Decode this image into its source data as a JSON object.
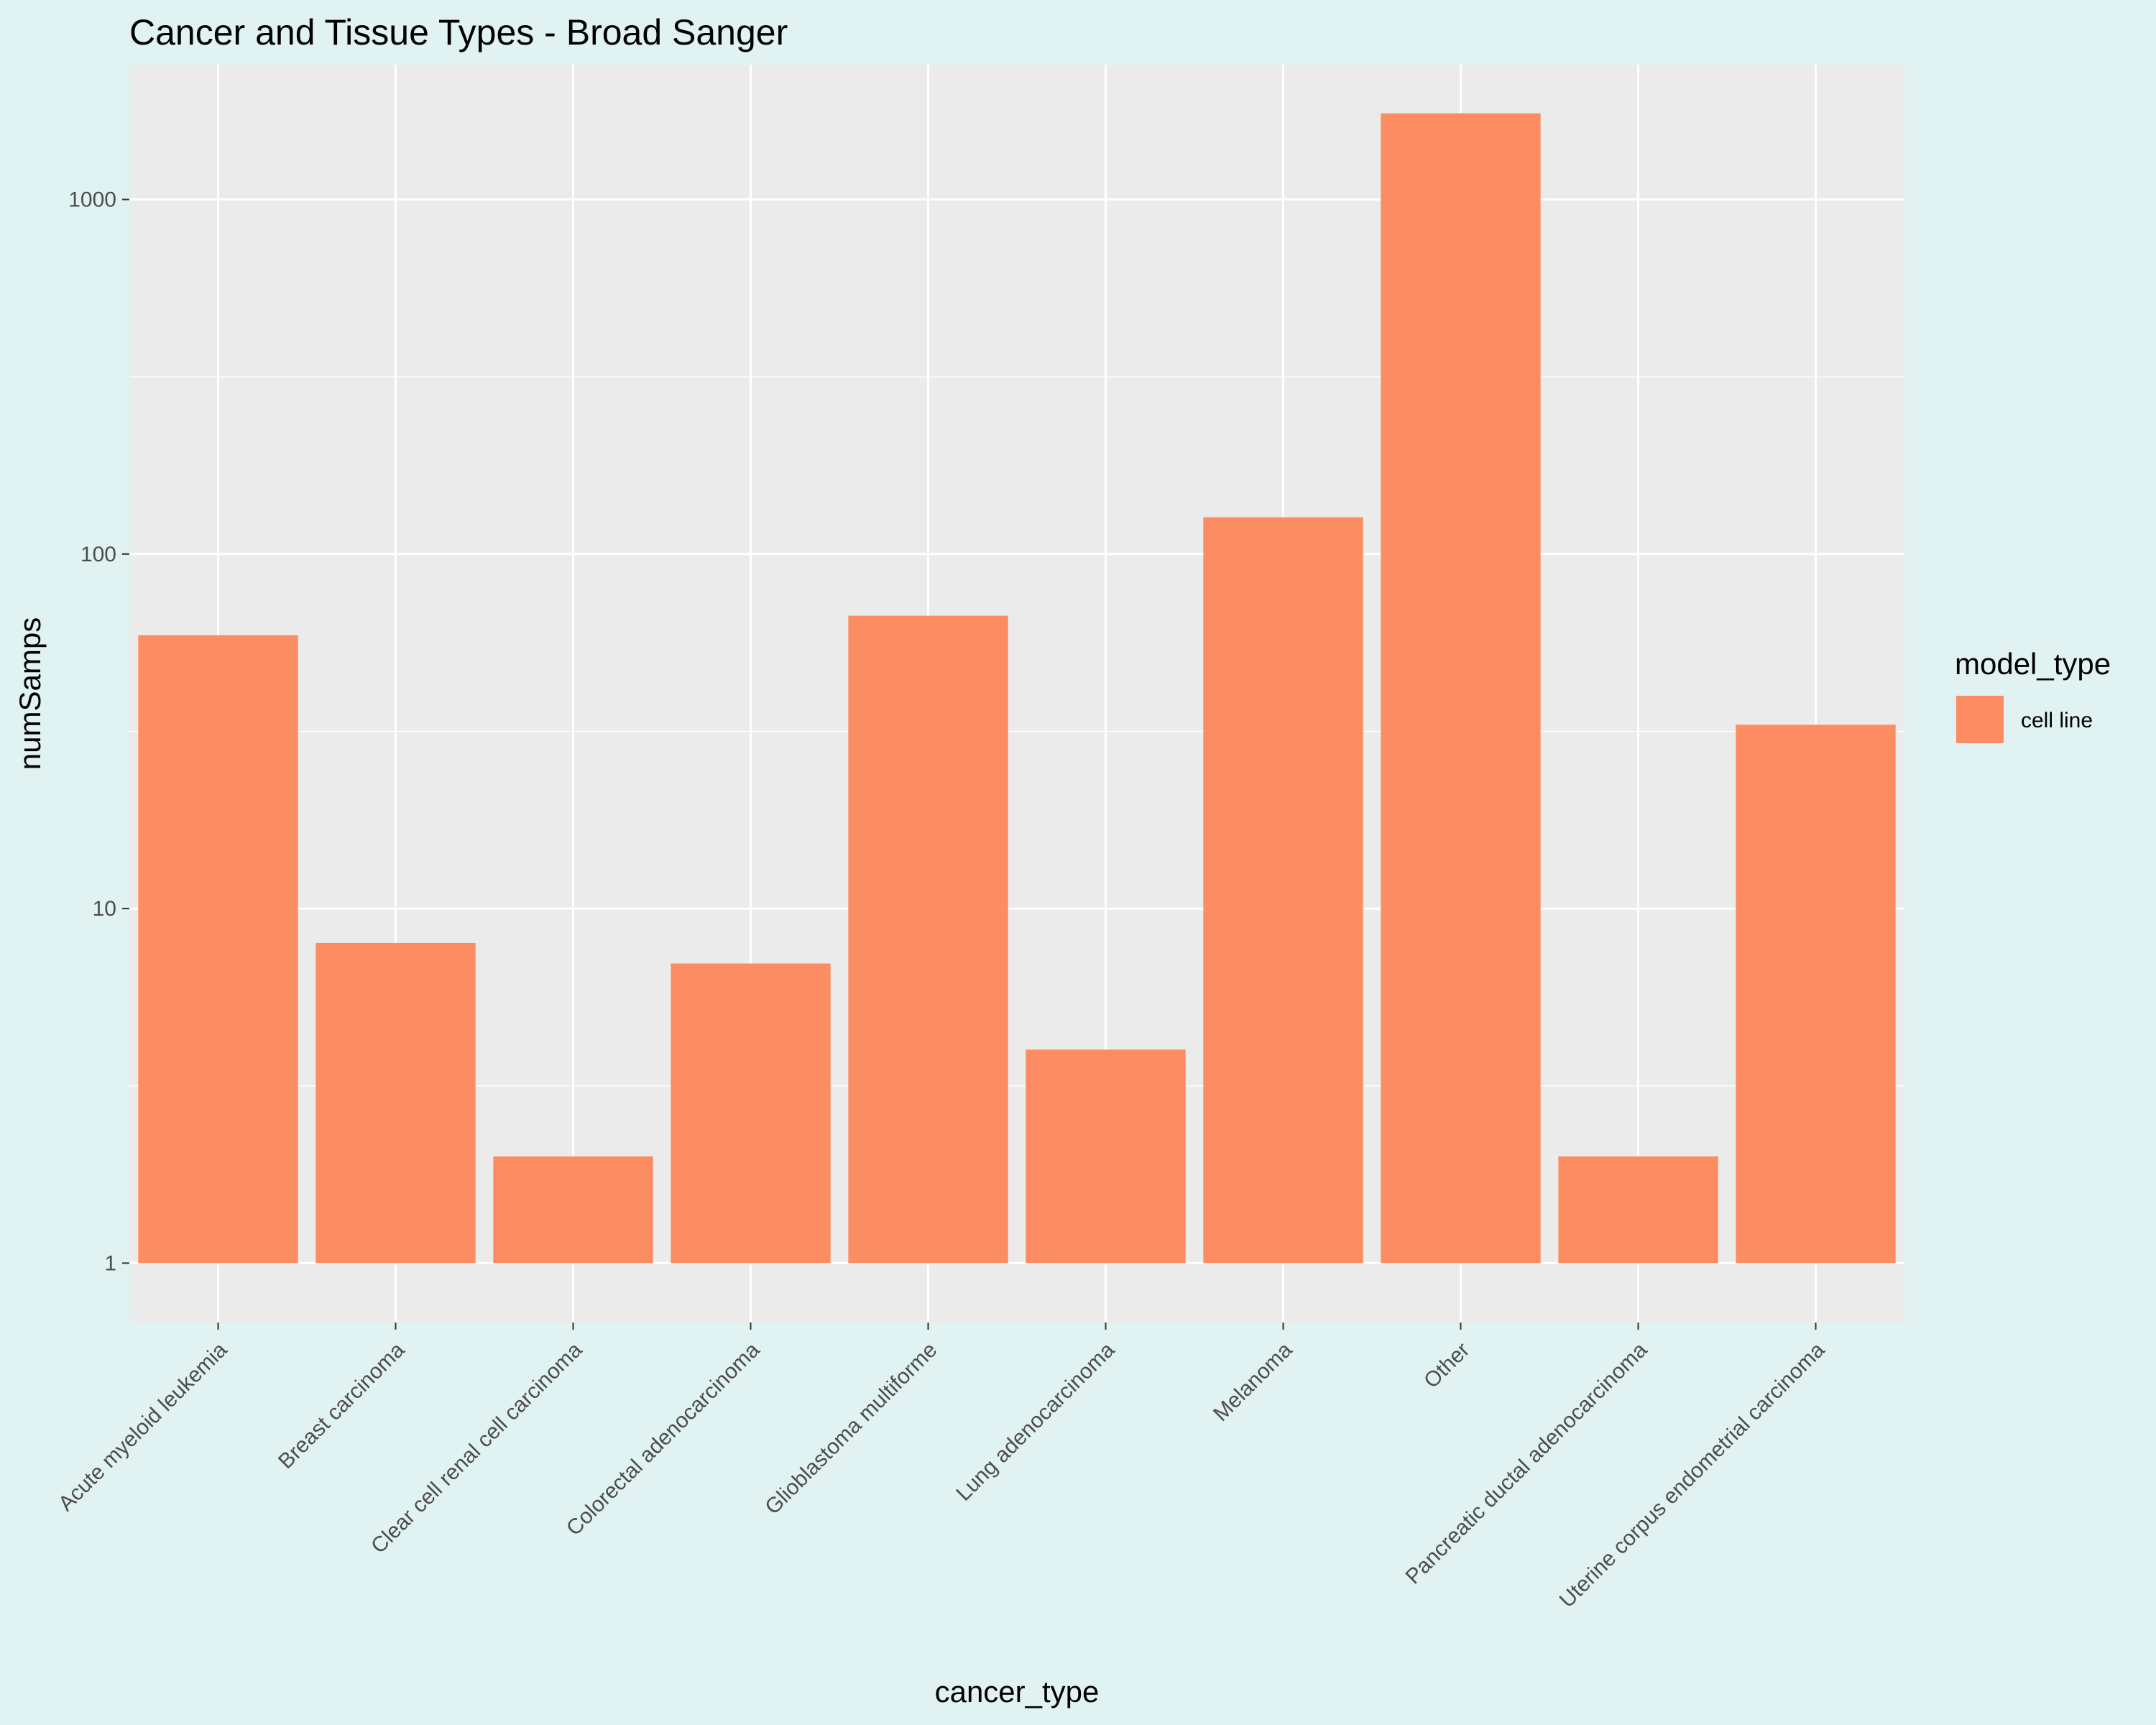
{
  "chart_data": {
    "type": "bar",
    "title": "Cancer and Tissue Types - Broad Sanger",
    "xlabel": "cancer_type",
    "ylabel": "numSamps",
    "y_scale": "log10",
    "ylim": [
      0.68,
      2400
    ],
    "y_ticks": [
      1,
      10,
      100,
      1000
    ],
    "y_tick_labels": [
      "1",
      "10",
      "100",
      "1000"
    ],
    "grid": true,
    "legend_position": "right",
    "legend_title": "model_type",
    "categories": [
      "Acute myeloid leukemia",
      "Breast carcinoma",
      "Clear cell renal cell carcinoma",
      "Colorectal adenocarcinoma",
      "Glioblastoma multiforme",
      "Lung adenocarcinoma",
      "Melanoma",
      "Other",
      "Pancreatic ductal adenocarcinoma",
      "Uterine corpus endometrial carcinoma"
    ],
    "series": [
      {
        "name": "cell line",
        "color": "#fc8d62",
        "values": [
          59,
          8,
          2,
          7,
          67,
          4,
          127,
          1750,
          2,
          33
        ]
      }
    ]
  },
  "colors": {
    "background": "#e0f2f1",
    "panel": "#ebebeb",
    "gridline": "#ffffff",
    "bar": "#fc8d62"
  }
}
